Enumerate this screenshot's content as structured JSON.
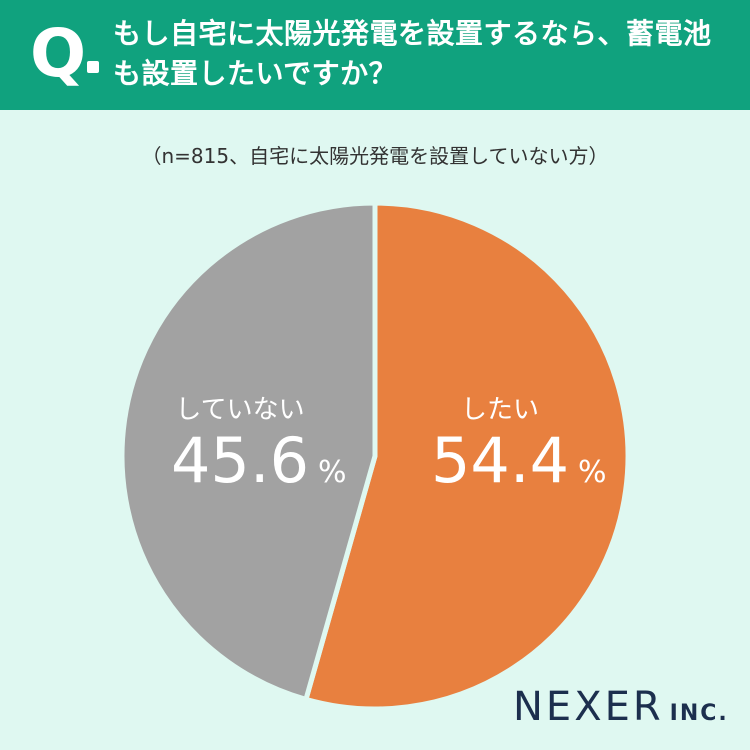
{
  "question": {
    "mark": "Q",
    "line1": "もし自宅に太陽光発電を設置するなら、蓄電池",
    "line2": "も設置したいですか？"
  },
  "subtitle": "（n=815、自宅に太陽光発電を設置していない方）",
  "chart_data": {
    "type": "pie",
    "slices": [
      {
        "label": "したい",
        "value": 54.4,
        "display": "54.4",
        "color": "#e8803f"
      },
      {
        "label": "していない",
        "value": 45.6,
        "display": "45.6",
        "color": "#a2a2a2"
      }
    ],
    "unit": "%"
  },
  "brand": {
    "main": "NEXER",
    "sub": "INC."
  },
  "colors": {
    "header": "#10a27e",
    "background": "#dff8f1",
    "brand": "#1c2f4e"
  }
}
